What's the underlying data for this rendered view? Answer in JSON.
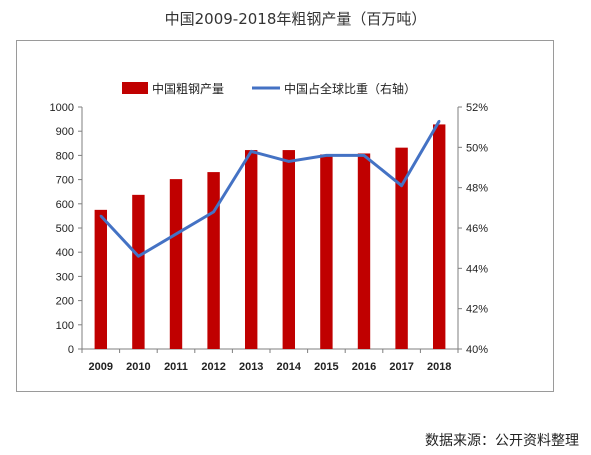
{
  "page": {
    "title": "中国2009-2018年粗钢产量（百万吨）",
    "source": "数据来源：公开资料整理"
  },
  "chart_data": {
    "type": "bar",
    "categories": [
      "2009",
      "2010",
      "2011",
      "2012",
      "2013",
      "2014",
      "2015",
      "2016",
      "2017",
      "2018"
    ],
    "series": [
      {
        "name": "中国粗钢产量",
        "type": "bar",
        "axis": "left",
        "color": "#c00000",
        "values": [
          575,
          637,
          702,
          731,
          822,
          822,
          804,
          808,
          832,
          928
        ]
      },
      {
        "name": "中国占全球比重（右轴）",
        "type": "line",
        "axis": "right",
        "color": "#4472c4",
        "values": [
          46.6,
          44.6,
          45.7,
          46.8,
          49.8,
          49.3,
          49.6,
          49.6,
          48.1,
          51.3
        ]
      }
    ],
    "ylim": [
      0,
      1000
    ],
    "yticks": [
      0,
      100,
      200,
      300,
      400,
      500,
      600,
      700,
      800,
      900,
      1000
    ],
    "y2lim": [
      40,
      52
    ],
    "y2ticks": [
      "40%",
      "42%",
      "44%",
      "46%",
      "48%",
      "50%",
      "52%"
    ],
    "legend": "top"
  }
}
